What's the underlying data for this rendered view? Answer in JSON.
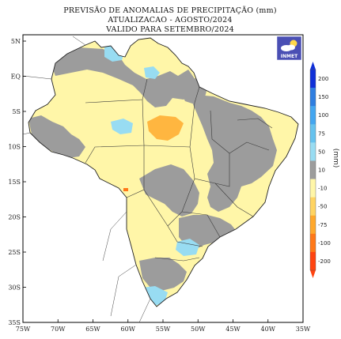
{
  "title": {
    "line1": "PREVISÃO DE ANOMALIAS DE PRECIPITAÇÃO (mm)",
    "line2": "ATUALIZACAO - AGOSTO/2024",
    "line3": "VALIDO PARA SETEMBRO/2024"
  },
  "lat_labels": [
    "5N",
    "EQ",
    "5S",
    "10S",
    "15S",
    "20S",
    "25S",
    "30S",
    "35S"
  ],
  "lon_labels": [
    "75W",
    "70W",
    "65W",
    "60W",
    "55W",
    "50W",
    "45W",
    "40W",
    "35W"
  ],
  "extent": {
    "lon_min": -75,
    "lon_max": -35,
    "lat_min": -35,
    "lat_max": 7
  },
  "colorbar": {
    "unit": "(mm)",
    "tick_labels": [
      "200",
      "150",
      "100",
      "75",
      "50",
      "10",
      "-10",
      "-50",
      "-75",
      "-100",
      "-200"
    ],
    "colors": [
      "#1030d8",
      "#2f7ee0",
      "#44a6f0",
      "#66c2ee",
      "#98dcf2",
      "#9c9c9c",
      "#fff6a8",
      "#ffd462",
      "#ffa82c",
      "#ff7818",
      "#ff4410"
    ]
  },
  "logo": {
    "text": "INMET",
    "icon": "weather-cloud-sun-icon"
  },
  "colors": {
    "background": "#ffffff",
    "brazil_fill": "#fff6a8",
    "normal": "#9c9c9c",
    "wet": "#98dcf2",
    "dry": "#ffb640",
    "border": "#333333"
  }
}
